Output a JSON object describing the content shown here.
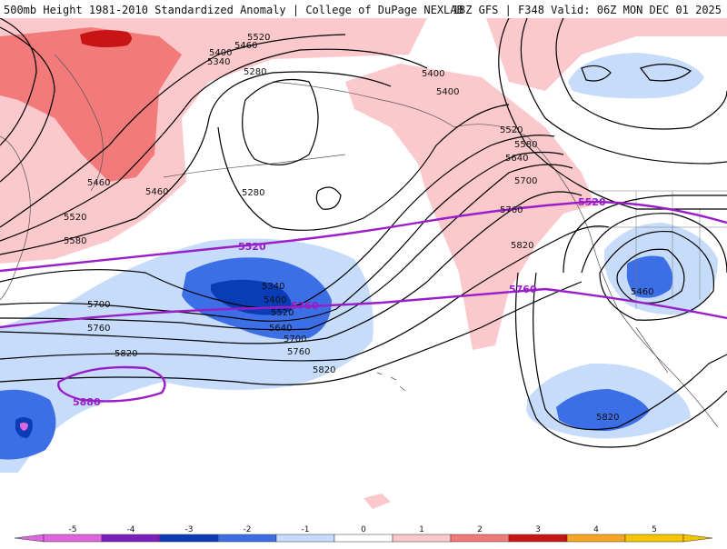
{
  "header": {
    "title": "500mb Height 1981-2010 Standardized Anomaly | College of DuPage NEXLAB",
    "run_info": "18Z GFS | F348 Valid: 06Z MON DEC 01 2025"
  },
  "colors": {
    "neg5": "#e066e0",
    "neg4": "#7a1fbf",
    "neg3": "#0a3cb8",
    "neg2": "#3c6fe6",
    "neg1": "#c6dcfa",
    "zero": "#ffffff",
    "pos1": "#fbc9cc",
    "pos2": "#f27a7a",
    "pos3": "#c81414",
    "pos4": "#f5a623",
    "pos5": "#f7c400",
    "height_contour": "#000000",
    "key_contour": "#9a1ec8",
    "coast": "#555555"
  },
  "contours": {
    "black_labels": [
      "5520",
      "5460",
      "5400",
      "5340",
      "5280",
      "5400",
      "5400",
      "5460",
      "5460",
      "5520",
      "5580",
      "5280",
      "5520",
      "5580",
      "5640",
      "5700",
      "5760",
      "5820",
      "5340",
      "5400",
      "5520",
      "5640",
      "5700",
      "5760",
      "5820",
      "5700",
      "5760",
      "5820",
      "5460",
      "5820"
    ],
    "key_labels": [
      "5520",
      "5760",
      "5520",
      "5760",
      "5880"
    ]
  },
  "colorbar": {
    "ticks": [
      "-5",
      "-4",
      "-3",
      "-2",
      "-1",
      "0",
      "1",
      "2",
      "3",
      "4",
      "5"
    ]
  }
}
